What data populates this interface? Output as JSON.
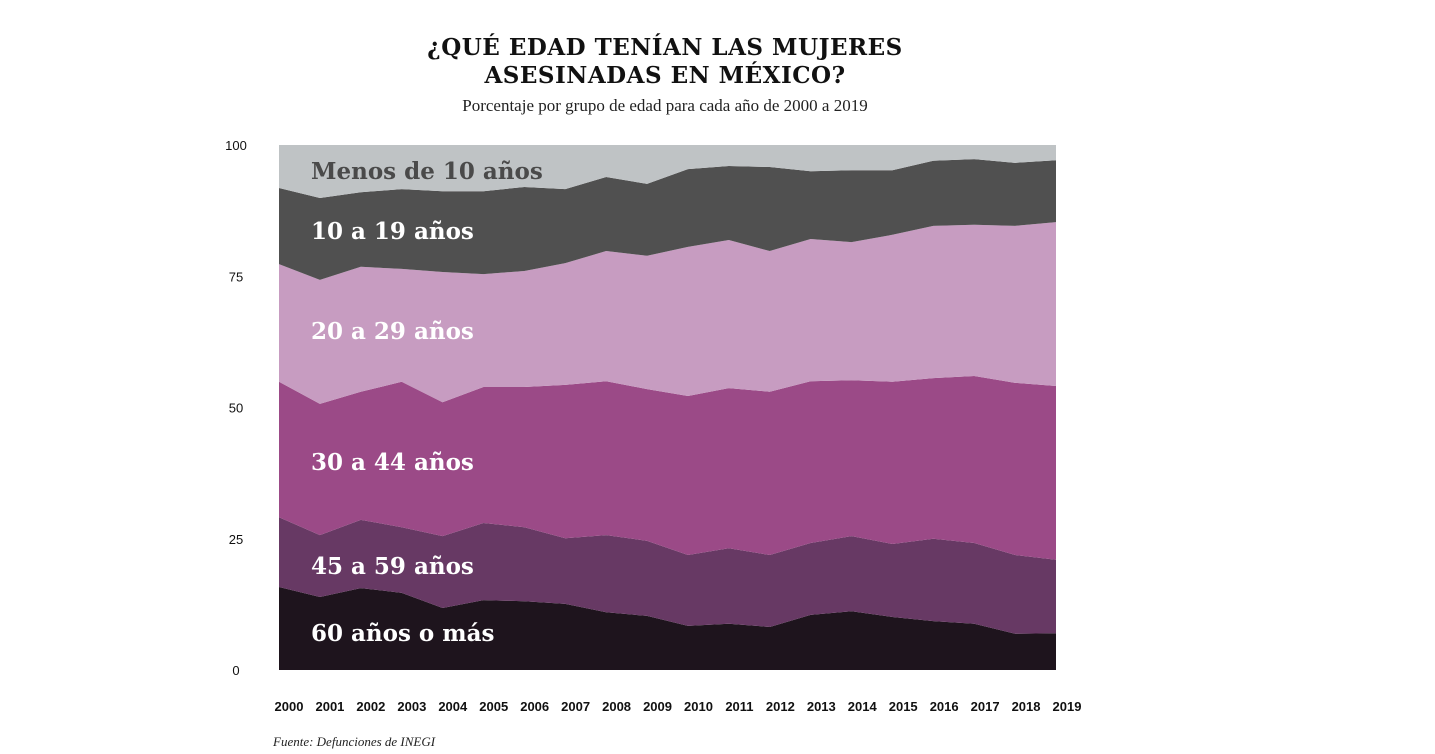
{
  "chart_data": {
    "type": "area",
    "stacked": true,
    "title": "¿QUÉ EDAD TENÍAN LAS MUJERES ASESINADAS EN MÉXICO?",
    "title_lines": [
      "¿QUÉ EDAD TENÍAN LAS MUJERES",
      "ASESINADAS EN MÉXICO?"
    ],
    "subtitle": "Porcentaje por grupo de edad para cada año de 2000 a 2019",
    "source": "Fuente: Defunciones de INEGI",
    "x": [
      2000,
      2001,
      2002,
      2003,
      2004,
      2005,
      2006,
      2007,
      2008,
      2009,
      2010,
      2011,
      2012,
      2013,
      2014,
      2015,
      2016,
      2017,
      2018,
      2019
    ],
    "ylim": [
      0,
      100
    ],
    "yticks": [
      0,
      25,
      50,
      75,
      100
    ],
    "grid": false,
    "legend": "inline labels",
    "series": [
      {
        "name": "60 años o más",
        "color": "#1e141d",
        "label_color": "#ffffff",
        "values": [
          15.8,
          13.9,
          15.6,
          14.7,
          11.8,
          13.3,
          13.1,
          12.6,
          11.0,
          10.3,
          8.4,
          8.8,
          8.2,
          10.5,
          11.2,
          10.1,
          9.3,
          8.8,
          6.9,
          7.0
        ]
      },
      {
        "name": "45 a 59 años",
        "color": "#673964",
        "label_color": "#ffffff",
        "values": [
          13.3,
          11.8,
          13.0,
          12.5,
          13.7,
          14.7,
          14.1,
          12.5,
          14.7,
          14.3,
          13.5,
          14.4,
          13.7,
          13.7,
          14.3,
          13.9,
          15.7,
          15.4,
          15.0,
          14.0
        ]
      },
      {
        "name": "30 a 44 años",
        "color": "#9b4a87",
        "label_color": "#ffffff",
        "values": [
          25.8,
          25.0,
          24.4,
          27.7,
          25.5,
          25.9,
          26.7,
          29.2,
          29.3,
          28.9,
          30.3,
          30.5,
          31.1,
          30.8,
          29.7,
          30.9,
          30.6,
          31.8,
          32.8,
          33.1
        ]
      },
      {
        "name": "20 a 29 años",
        "color": "#c79cc1",
        "label_color": "#ffffff",
        "values": [
          22.4,
          23.6,
          23.8,
          21.5,
          24.8,
          21.5,
          22.1,
          23.2,
          24.8,
          25.4,
          28.4,
          28.2,
          26.8,
          27.1,
          26.3,
          28.0,
          29.0,
          28.8,
          29.9,
          31.2
        ]
      },
      {
        "name": "10 a 19 años",
        "color": "#505050",
        "label_color": "#ffffff",
        "values": [
          14.5,
          15.6,
          14.2,
          15.2,
          15.4,
          15.8,
          16.0,
          14.1,
          14.1,
          13.7,
          14.8,
          14.1,
          16.0,
          12.9,
          13.7,
          12.3,
          12.4,
          12.5,
          12.0,
          11.8
        ]
      },
      {
        "name": "Menos de 10 años",
        "color": "#bfc3c5",
        "label_color": "#4a4a4a",
        "values": [
          8.2,
          10.1,
          9.0,
          8.4,
          8.8,
          8.8,
          8.0,
          8.4,
          6.1,
          7.4,
          4.6,
          4.0,
          4.2,
          5.0,
          4.8,
          4.8,
          3.0,
          2.7,
          3.4,
          2.9
        ]
      }
    ]
  }
}
